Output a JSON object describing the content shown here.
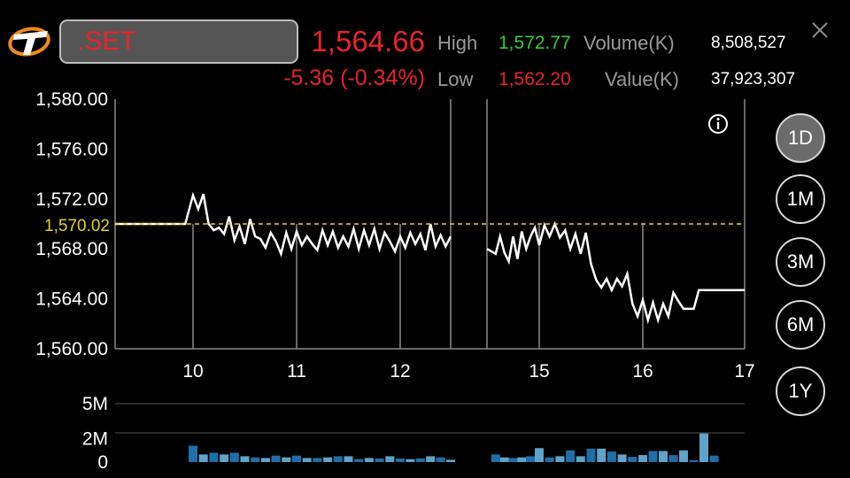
{
  "header": {
    "symbol": ".SET",
    "last_price": "1,564.66",
    "change": "-5.36 (-0.34%)",
    "high_label": "High",
    "high_value": "1,572.77",
    "low_label": "Low",
    "low_value": "1,562.20",
    "volume_label": "Volume(K)",
    "volume_value": "8,508,527",
    "value_label": "Value(K)",
    "value_value": "37,923,307"
  },
  "colors": {
    "background": "#000000",
    "up": "#2ecc40",
    "down": "#e8232b",
    "reference_line": "#e6d21a",
    "volume_bar": "#1f6ea8",
    "volume_bar_light": "#5fa3c8"
  },
  "icons": {
    "logo": "stylized-T-logo-icon",
    "close": "close-icon",
    "info": "info-icon"
  },
  "ranges": [
    {
      "label": "1D",
      "active": true
    },
    {
      "label": "1M",
      "active": false
    },
    {
      "label": "3M",
      "active": false
    },
    {
      "label": "6M",
      "active": false
    },
    {
      "label": "1Y",
      "active": false
    }
  ],
  "chart_data": [
    {
      "type": "line",
      "y_ticks": [
        "1,580.00",
        "1,576.00",
        "1,572.00",
        "1,568.00",
        "1,564.00",
        "1,560.00"
      ],
      "ylim": [
        1560,
        1580
      ],
      "reference_value": "1,570.02",
      "x_ticks": [
        "10",
        "11",
        "12",
        "15",
        "16",
        "17"
      ],
      "grid": "vertical lines at x ticks",
      "series": [
        {
          "segment": "morning",
          "x": [
            9.0,
            9.1,
            9.2,
            9.3,
            9.4,
            9.5,
            9.6,
            9.7,
            9.8,
            9.9,
            10.0,
            10.05,
            10.1,
            10.15,
            10.2,
            10.25,
            10.3,
            10.35,
            10.4,
            10.45,
            10.5,
            10.55,
            10.6,
            10.65,
            10.7,
            10.75,
            10.8,
            10.85,
            10.9,
            10.95,
            11.0,
            11.05,
            11.1,
            11.15,
            11.2,
            11.25,
            11.3,
            11.35,
            11.4,
            11.45,
            11.5,
            11.55,
            11.6,
            11.65,
            11.7,
            11.75,
            11.8,
            11.85,
            11.9,
            11.95,
            12.0,
            12.05,
            12.1,
            12.15,
            12.2,
            12.25,
            12.3,
            12.35,
            12.4,
            12.45,
            12.5
          ],
          "values": [
            1570.0,
            1570.0,
            1570.0,
            1570.0,
            1570.0,
            1570.0,
            1570.0,
            1570.0,
            1570.0,
            1570.0,
            1572.3,
            1571.2,
            1572.4,
            1570.0,
            1569.5,
            1569.7,
            1569.2,
            1570.6,
            1568.7,
            1569.8,
            1568.4,
            1570.4,
            1569.0,
            1568.8,
            1568.1,
            1569.3,
            1568.6,
            1567.6,
            1569.3,
            1568.0,
            1569.4,
            1568.3,
            1569.0,
            1568.4,
            1567.9,
            1569.5,
            1568.3,
            1569.4,
            1568.1,
            1569.0,
            1568.2,
            1569.6,
            1568.0,
            1569.5,
            1568.3,
            1569.6,
            1568.0,
            1569.3,
            1568.6,
            1567.8,
            1569.0,
            1568.1,
            1569.3,
            1568.4,
            1569.2,
            1567.9,
            1570.0,
            1568.2,
            1569.1,
            1568.2,
            1569.0
          ]
        },
        {
          "segment": "afternoon",
          "x": [
            14.4,
            14.5,
            14.55,
            14.6,
            14.65,
            14.7,
            14.75,
            14.8,
            14.85,
            14.9,
            14.95,
            15.0,
            15.05,
            15.1,
            15.15,
            15.2,
            15.25,
            15.3,
            15.35,
            15.4,
            15.45,
            15.5,
            15.55,
            15.6,
            15.65,
            15.7,
            15.75,
            15.8,
            15.85,
            15.9,
            15.95,
            16.0,
            16.05,
            16.1,
            16.15,
            16.2,
            16.25,
            16.3,
            16.35,
            16.4,
            16.45,
            16.5,
            16.55,
            16.6,
            16.65,
            16.7,
            16.8,
            16.9,
            17.0
          ],
          "values": [
            1568.0,
            1567.6,
            1569.0,
            1567.7,
            1567.0,
            1569.0,
            1567.2,
            1569.4,
            1568.0,
            1569.0,
            1569.7,
            1568.3,
            1569.9,
            1569.0,
            1570.0,
            1568.9,
            1569.5,
            1568.0,
            1569.2,
            1567.6,
            1569.3,
            1566.8,
            1565.5,
            1564.9,
            1565.6,
            1564.7,
            1565.6,
            1565.0,
            1566.0,
            1563.6,
            1562.6,
            1563.9,
            1562.3,
            1563.7,
            1562.3,
            1563.6,
            1562.6,
            1564.5,
            1563.8,
            1563.2,
            1563.2,
            1563.2,
            1564.7,
            1564.7,
            1564.7,
            1564.7,
            1564.7,
            1564.7,
            1564.7
          ]
        }
      ]
    },
    {
      "type": "bar",
      "y_ticks": [
        "5M",
        "2M",
        "0"
      ],
      "ylim": [
        0,
        5
      ],
      "unit": "M",
      "segments": [
        {
          "x": [
            10.0,
            10.1,
            10.2,
            10.3,
            10.4,
            10.5,
            10.6,
            10.7,
            10.8,
            10.9,
            11.0,
            11.1,
            11.2,
            11.3,
            11.4,
            11.5,
            11.6,
            11.7,
            11.8,
            11.9,
            12.0,
            12.1,
            12.2,
            12.3,
            12.4,
            12.5
          ],
          "values": [
            1.4,
            0.65,
            0.8,
            0.65,
            0.8,
            0.5,
            0.4,
            0.35,
            0.55,
            0.4,
            0.55,
            0.35,
            0.35,
            0.4,
            0.5,
            0.5,
            0.25,
            0.35,
            0.3,
            0.5,
            0.3,
            0.25,
            0.3,
            0.5,
            0.4,
            0.2
          ]
        },
        {
          "x": [
            14.5,
            14.6,
            14.7,
            14.8,
            14.9,
            15.0,
            15.1,
            15.2,
            15.3,
            15.4,
            15.5,
            15.6,
            15.7,
            15.8,
            15.9,
            16.0,
            16.1,
            16.2,
            16.3,
            16.4,
            16.5,
            16.6,
            16.7
          ],
          "values": [
            0.65,
            0.4,
            0.35,
            0.4,
            0.5,
            1.2,
            0.4,
            0.5,
            1.0,
            0.5,
            1.15,
            1.15,
            0.9,
            0.65,
            0.45,
            0.6,
            0.95,
            0.95,
            0.6,
            1.0,
            0.15,
            2.45,
            0.55
          ]
        }
      ]
    }
  ]
}
